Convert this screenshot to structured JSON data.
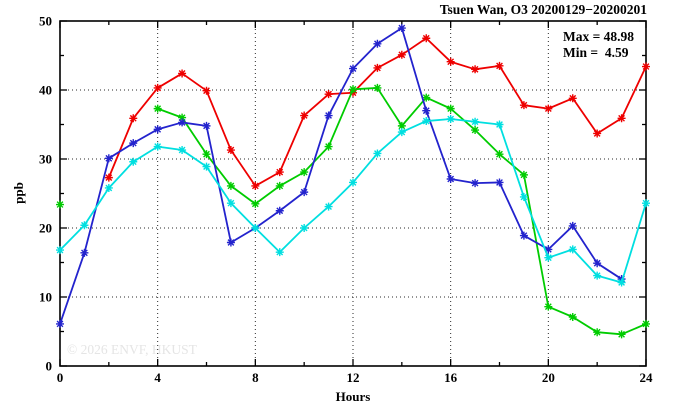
{
  "header": {
    "title": "Tsuen Wan, O3 20200129−20200201",
    "max_label": "Max = 48.98",
    "min_label": "Min =  4.59"
  },
  "watermark": "© 2026 ENVF, HKUST",
  "chart_data": {
    "type": "line",
    "title": "Tsuen Wan, O3 20200129−20200201",
    "station": "Tsuen Wan",
    "pollutant": "O3",
    "date_range": "20200129−20200201",
    "xlabel": "Hours",
    "ylabel": "ppb",
    "xlim": [
      0,
      24
    ],
    "ylim": [
      0,
      50
    ],
    "xticks": [
      0,
      4,
      8,
      12,
      16,
      20,
      24
    ],
    "x_minor_ticks": [
      2,
      6,
      10,
      14,
      18,
      22
    ],
    "yticks": [
      0,
      10,
      20,
      30,
      40,
      50
    ],
    "y_minor_ticks": [
      5,
      15,
      25,
      35,
      45
    ],
    "grid": true,
    "legend": "none",
    "stat_max": 48.98,
    "stat_min": 4.59,
    "marker": "asterisk",
    "x": [
      0,
      1,
      2,
      3,
      4,
      5,
      6,
      7,
      8,
      9,
      10,
      11,
      12,
      13,
      14,
      15,
      16,
      17,
      18,
      19,
      20,
      21,
      22,
      23,
      24
    ],
    "series": [
      {
        "name": "series-red",
        "color": "#ee0000",
        "values": [
          null,
          null,
          27.3,
          35.9,
          40.3,
          42.4,
          39.9,
          31.3,
          26.1,
          28.1,
          36.3,
          39.4,
          39.6,
          43.2,
          45.1,
          47.5,
          44.1,
          43.0,
          43.5,
          37.8,
          37.3,
          38.8,
          33.7,
          35.9,
          43.4
        ]
      },
      {
        "name": "series-green",
        "color": "#00cc00",
        "values": [
          23.4,
          null,
          null,
          null,
          37.3,
          36.0,
          30.7,
          26.1,
          23.5,
          26.1,
          28.1,
          31.8,
          40.1,
          40.3,
          34.8,
          38.9,
          37.3,
          34.2,
          30.7,
          27.7,
          8.6,
          7.1,
          4.9,
          4.59,
          6.1
        ]
      },
      {
        "name": "series-blue",
        "color": "#2323cd",
        "values": [
          6.1,
          16.4,
          30.1,
          32.3,
          34.3,
          35.3,
          34.8,
          17.9,
          20.0,
          22.5,
          25.2,
          36.3,
          43.1,
          46.7,
          48.98,
          37.0,
          27.1,
          26.5,
          26.6,
          18.9,
          16.9,
          20.3,
          14.9,
          12.6,
          null
        ]
      },
      {
        "name": "series-cyan",
        "color": "#00dfe0",
        "values": [
          16.8,
          20.4,
          25.8,
          29.6,
          31.8,
          31.3,
          28.9,
          23.6,
          20.0,
          16.5,
          20.0,
          23.1,
          26.6,
          30.8,
          33.9,
          35.5,
          35.8,
          35.4,
          35.0,
          24.5,
          15.7,
          16.9,
          13.1,
          12.1,
          23.6
        ]
      }
    ]
  }
}
